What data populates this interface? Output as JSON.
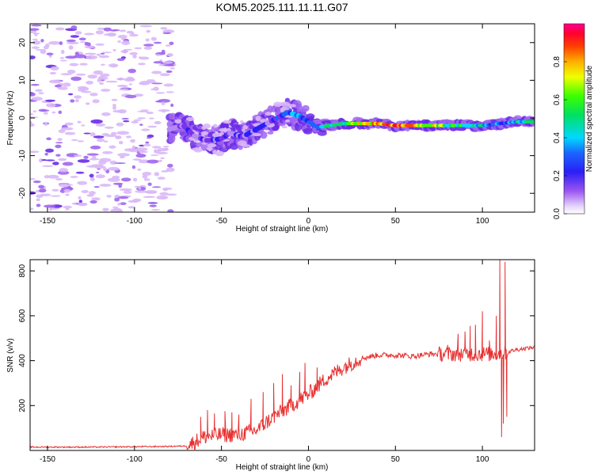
{
  "title": "KOM5.2025.111.11.11.G07",
  "colors": {
    "background": "#ffffff",
    "blob_light": "#d9b8f7",
    "blob_mid": "#a066f0",
    "blob_dark": "#6a2ae8",
    "snr_line": "#e83030"
  },
  "chart_data": [
    {
      "id": "spectrogram",
      "type": "heatmap",
      "title": "KOM5.2025.111.11.11.G07",
      "xlabel": "Height of straight line (km)",
      "ylabel": "Frequency (Hz)",
      "xlim": [
        -160,
        130
      ],
      "ylim": [
        -25,
        25
      ],
      "x_ticks": [
        -150,
        -100,
        -50,
        0,
        50,
        100
      ],
      "y_ticks": [
        -20,
        -10,
        0,
        10,
        20
      ],
      "colorbar": {
        "label": "Normalized spectral amplitude",
        "range": [
          0,
          1
        ],
        "ticks": [
          "0.0",
          "0.2",
          "0.4",
          "0.6",
          "0.8"
        ],
        "ticks_values": [
          0,
          0.2,
          0.4,
          0.6,
          0.8
        ],
        "colormap": "rainbow (purple-blue-cyan-green-yellow-red-magenta)"
      },
      "noise_region": {
        "x_range": [
          -160,
          -78
        ],
        "y_range": [
          -25,
          25
        ],
        "amplitude": 0.05
      },
      "ridge": [
        {
          "x": -80,
          "y": -3,
          "amp": 0.1
        },
        {
          "x": -72,
          "y": -2,
          "amp": 0.15
        },
        {
          "x": -65,
          "y": -5,
          "amp": 0.18
        },
        {
          "x": -58,
          "y": -6,
          "amp": 0.2
        },
        {
          "x": -50,
          "y": -5.5,
          "amp": 0.22
        },
        {
          "x": -45,
          "y": -4,
          "amp": 0.15
        },
        {
          "x": -38,
          "y": -5,
          "amp": 0.2
        },
        {
          "x": -30,
          "y": -3,
          "amp": 0.22
        },
        {
          "x": -24,
          "y": -1.5,
          "amp": 0.18
        },
        {
          "x": -18,
          "y": 0,
          "amp": 0.25
        },
        {
          "x": -12,
          "y": 1.5,
          "amp": 0.35
        },
        {
          "x": -5,
          "y": 0.5,
          "amp": 0.4
        },
        {
          "x": 0,
          "y": -1,
          "amp": 0.4
        },
        {
          "x": 5,
          "y": -2.5,
          "amp": 0.45
        },
        {
          "x": 12,
          "y": -2,
          "amp": 0.5
        },
        {
          "x": 20,
          "y": -1.5,
          "amp": 0.6
        },
        {
          "x": 30,
          "y": -1.5,
          "amp": 0.75
        },
        {
          "x": 40,
          "y": -1.5,
          "amp": 0.85
        },
        {
          "x": 50,
          "y": -2,
          "amp": 0.9
        },
        {
          "x": 60,
          "y": -2,
          "amp": 0.85
        },
        {
          "x": 70,
          "y": -2,
          "amp": 0.75
        },
        {
          "x": 80,
          "y": -2,
          "amp": 0.6
        },
        {
          "x": 90,
          "y": -2,
          "amp": 0.55
        },
        {
          "x": 100,
          "y": -2,
          "amp": 0.45
        },
        {
          "x": 110,
          "y": -1.5,
          "amp": 0.35
        },
        {
          "x": 120,
          "y": -1,
          "amp": 0.45
        },
        {
          "x": 130,
          "y": -1,
          "amp": 0.5
        }
      ]
    },
    {
      "id": "snr",
      "type": "line",
      "title": "",
      "xlabel": "Height of straight line (km)",
      "ylabel": "SNR (v/v)",
      "xlim": [
        -160,
        130
      ],
      "ylim": [
        0,
        850
      ],
      "x_ticks": [
        -150,
        -100,
        -50,
        0,
        50,
        100
      ],
      "y_ticks": [
        200,
        400,
        600,
        800
      ],
      "series": [
        {
          "color": "#e83030",
          "baseline": [
            [
              -160,
              15
            ],
            [
              -120,
              15
            ],
            [
              -80,
              18
            ],
            [
              -70,
              20
            ],
            [
              -60,
              60
            ],
            [
              -50,
              70
            ],
            [
              -40,
              70
            ],
            [
              -30,
              90
            ],
            [
              -20,
              150
            ],
            [
              -10,
              200
            ],
            [
              0,
              250
            ],
            [
              10,
              320
            ],
            [
              20,
              370
            ],
            [
              30,
              410
            ],
            [
              40,
              425
            ],
            [
              50,
              425
            ],
            [
              60,
              420
            ],
            [
              70,
              430
            ],
            [
              80,
              430
            ],
            [
              90,
              430
            ],
            [
              100,
              430
            ],
            [
              108,
              430
            ],
            [
              115,
              440
            ],
            [
              120,
              450
            ],
            [
              130,
              460
            ]
          ],
          "spikes": [
            [
              -62,
              150
            ],
            [
              -58,
              180
            ],
            [
              -54,
              165
            ],
            [
              -48,
              175
            ],
            [
              -44,
              170
            ],
            [
              -40,
              160
            ],
            [
              -33,
              230
            ],
            [
              -26,
              260
            ],
            [
              -20,
              300
            ],
            [
              -15,
              340
            ],
            [
              -10,
              290
            ],
            [
              -5,
              350
            ],
            [
              -2,
              390
            ],
            [
              5,
              370
            ],
            [
              80,
              470
            ],
            [
              86,
              520
            ],
            [
              90,
              530
            ],
            [
              93,
              555
            ],
            [
              96,
              560
            ],
            [
              100,
              620
            ],
            [
              104,
              490
            ],
            [
              108,
              600
            ],
            [
              110,
              850
            ],
            [
              111,
              60
            ],
            [
              112,
              120
            ],
            [
              113,
              840
            ],
            [
              114,
              150
            ]
          ]
        }
      ]
    }
  ]
}
